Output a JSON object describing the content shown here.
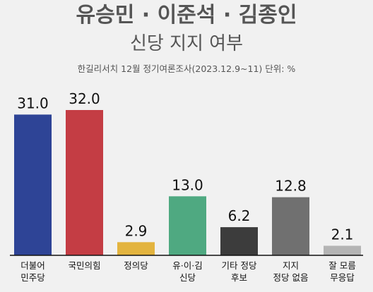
{
  "chart_data": {
    "type": "bar",
    "title": "유승민 · 이준석 · 김종인",
    "subtitle": "신당 지지 여부",
    "source": "한길리서치 12월 정기여론조사(2023.12.9~11) 단위: %",
    "categories": [
      [
        "더불어",
        "민주당"
      ],
      [
        "국민의힘"
      ],
      [
        "정의당"
      ],
      [
        "유·이·김",
        "신당"
      ],
      [
        "기타 정당",
        "후보"
      ],
      [
        "지지",
        "정당 없음"
      ],
      [
        "잘 모름",
        "무응답"
      ]
    ],
    "values": [
      31.0,
      32.0,
      2.9,
      13.0,
      6.2,
      12.8,
      2.1
    ],
    "value_labels": [
      "31.0",
      "32.0",
      "2.9",
      "13.0",
      "6.2",
      "12.8",
      "2.1"
    ],
    "colors": [
      "#2e4496",
      "#c43d44",
      "#e3b43f",
      "#4fa981",
      "#3c3c3c",
      "#707070",
      "#b4b4b4"
    ],
    "ylim": [
      0,
      32
    ],
    "grid": false,
    "legend": false
  }
}
